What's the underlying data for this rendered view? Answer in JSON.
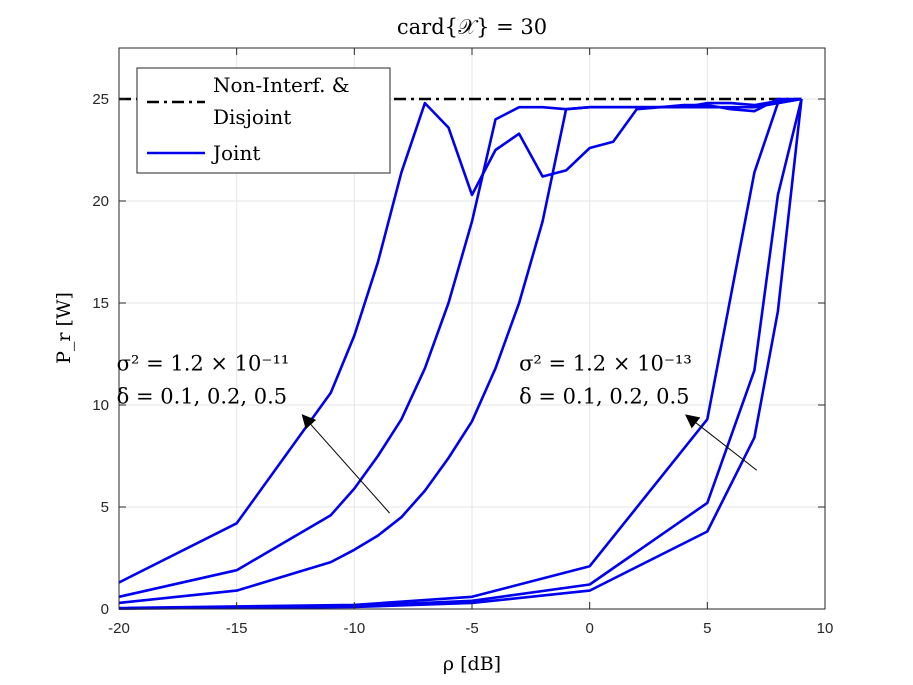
{
  "chart_data": {
    "type": "line",
    "title": "card{𝒳} = 30",
    "xlabel": "ρ [dB]",
    "ylabel": "P_r [W]",
    "xlim": [
      -20,
      10
    ],
    "ylim": [
      0,
      27.5
    ],
    "xticks": [
      -20,
      -15,
      -10,
      -5,
      0,
      5,
      10
    ],
    "yticks": [
      0,
      5,
      10,
      15,
      20,
      25
    ],
    "grid": true,
    "legend_position": "top-left",
    "legend": [
      {
        "label": "Non-Interf. &",
        "label2": "Disjoint",
        "style": "dash-dot",
        "color": "#000000"
      },
      {
        "label": "Joint",
        "style": "solid",
        "color": "#0000ee"
      }
    ],
    "reference_line": {
      "name": "Non-Interf. & Disjoint",
      "y": 25,
      "x": [
        -20,
        9
      ]
    },
    "series": [
      {
        "group": "sigma2=1.2e-11",
        "delta": 0.1,
        "x": [
          -20,
          -15,
          -11,
          -10,
          -9,
          -8,
          -7,
          -6,
          -5,
          -4,
          -3,
          -2,
          -1,
          0,
          1,
          2,
          3,
          4,
          5,
          6,
          7,
          8,
          9
        ],
        "y": [
          1.3,
          4.2,
          10.6,
          13.4,
          17.0,
          21.4,
          24.8,
          23.6,
          20.3,
          22.5,
          23.3,
          21.2,
          21.5,
          22.6,
          22.9,
          24.5,
          24.6,
          24.6,
          24.8,
          24.8,
          24.7,
          24.9,
          25.0
        ]
      },
      {
        "group": "sigma2=1.2e-11",
        "delta": 0.2,
        "x": [
          -20,
          -15,
          -11,
          -10,
          -9,
          -8,
          -7,
          -6,
          -5,
          -4,
          -3,
          -2,
          -1,
          0,
          1,
          2,
          3,
          4,
          5,
          6,
          7,
          8,
          9
        ],
        "y": [
          0.6,
          1.9,
          4.6,
          5.9,
          7.5,
          9.3,
          11.8,
          15.0,
          19.0,
          24.0,
          24.6,
          24.6,
          24.5,
          24.6,
          24.6,
          24.6,
          24.6,
          24.7,
          24.7,
          24.5,
          24.4,
          25.0,
          25.0
        ]
      },
      {
        "group": "sigma2=1.2e-11",
        "delta": 0.5,
        "x": [
          -20,
          -15,
          -11,
          -10,
          -9,
          -8,
          -7,
          -6,
          -5,
          -4,
          -3,
          -2,
          -1,
          0,
          1,
          2,
          3,
          4,
          5,
          6,
          7,
          8,
          9
        ],
        "y": [
          0.3,
          0.9,
          2.3,
          2.9,
          3.6,
          4.5,
          5.8,
          7.4,
          9.2,
          11.8,
          15.0,
          19.0,
          24.5,
          24.6,
          24.6,
          24.6,
          24.6,
          24.6,
          24.6,
          24.6,
          24.6,
          24.8,
          25.0
        ]
      },
      {
        "group": "sigma2=1.2e-13",
        "delta": 0.1,
        "x": [
          -20,
          -10,
          -5,
          0,
          5,
          7,
          8,
          9
        ],
        "y": [
          0.05,
          0.2,
          0.6,
          2.1,
          9.3,
          21.4,
          24.8,
          25.0
        ]
      },
      {
        "group": "sigma2=1.2e-13",
        "delta": 0.2,
        "x": [
          -20,
          -10,
          -5,
          0,
          5,
          7,
          8,
          9
        ],
        "y": [
          0.03,
          0.15,
          0.4,
          1.2,
          5.2,
          11.7,
          20.3,
          25.0
        ]
      },
      {
        "group": "sigma2=1.2e-13",
        "delta": 0.5,
        "x": [
          -20,
          -10,
          -5,
          0,
          5,
          7,
          8,
          9
        ],
        "y": [
          0.02,
          0.1,
          0.3,
          0.9,
          3.8,
          8.4,
          14.6,
          25.0
        ]
      }
    ],
    "annotations": [
      {
        "name": "left",
        "line1": "σ² = 1.2 × 10⁻¹¹",
        "line2": "δ = 0.1, 0.2, 0.5",
        "text_at": [
          -20.1,
          11.7
        ],
        "arrow_from": [
          -8.5,
          4.7
        ],
        "arrow_to": [
          -12.2,
          9.5
        ]
      },
      {
        "name": "right",
        "line1": "σ² = 1.2 × 10⁻¹³",
        "line2": "δ = 0.1, 0.2, 0.5",
        "text_at": [
          -3.0,
          11.7
        ],
        "arrow_from": [
          7.1,
          6.8
        ],
        "arrow_to": [
          4.1,
          9.5
        ]
      }
    ]
  }
}
